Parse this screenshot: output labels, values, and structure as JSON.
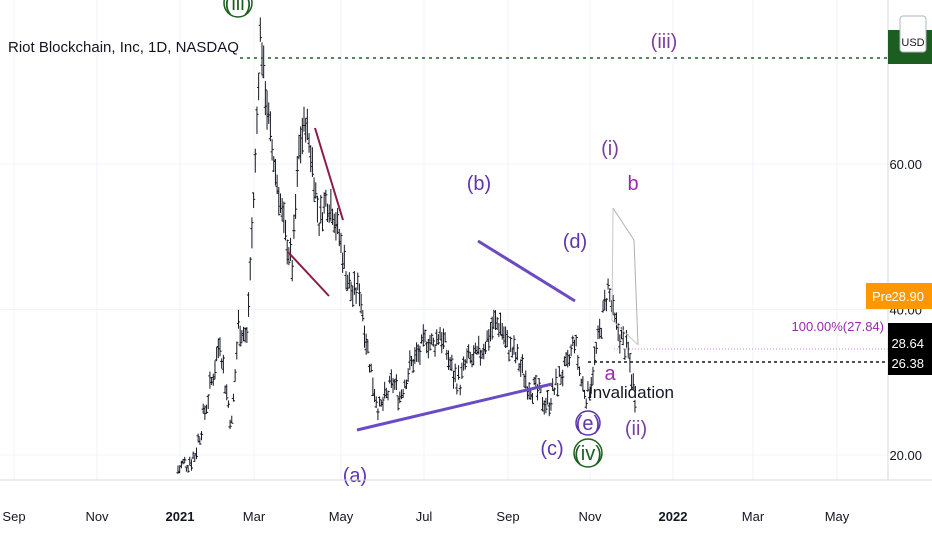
{
  "header": {
    "title": "Riot Blockchain, Inc, 1D, NASDAQ",
    "currency": "USD"
  },
  "chart_data": {
    "type": "ohlc",
    "title": "Riot Blockchain, Inc, 1D, NASDAQ",
    "xlabel": "",
    "ylabel": "",
    "ylim": [
      16,
      82
    ],
    "x_tick_labels": [
      "Sep",
      "Nov",
      "2021",
      "Mar",
      "May",
      "Jul",
      "Sep",
      "Nov",
      "2022",
      "Mar",
      "May"
    ],
    "y_tick_labels": [
      "20.00",
      "40.00",
      "60.00"
    ],
    "y_ticks": [
      20,
      40,
      60
    ],
    "grid": true,
    "price_markers": {
      "pre": {
        "label": "Pre",
        "value": "28.90",
        "color": "#ff9800"
      },
      "last": {
        "value": "28.64",
        "color": "#000000"
      },
      "invalidation": {
        "value": "26.38",
        "color": "#000000"
      },
      "wave_iii_target": {
        "value": "",
        "color": "#1b5e20"
      }
    },
    "fib_label": "100.00%(27.84)",
    "annotations": {
      "invalidation_text": "Invalidation",
      "waves": [
        {
          "text": "(iii)",
          "color": "#1b5e20",
          "circled": true
        },
        {
          "text": "(iii)",
          "color": "#7b3fa0"
        },
        {
          "text": "(b)",
          "color": "#5e35b1"
        },
        {
          "text": "(d)",
          "color": "#5e35b1"
        },
        {
          "text": "(i)",
          "color": "#7b3fa0"
        },
        {
          "text": "b",
          "color": "#9c27b0"
        },
        {
          "text": "a",
          "color": "#9c27b0"
        },
        {
          "text": "(ii)",
          "color": "#7b3fa0"
        },
        {
          "text": "(c)",
          "color": "#5e35b1"
        },
        {
          "text": "(e)",
          "color": "#5e35b1",
          "circled": true
        },
        {
          "text": "(iv)",
          "color": "#1b5e20",
          "circled": true
        },
        {
          "text": "(a)",
          "color": "#5e35b1"
        }
      ]
    },
    "colors": {
      "bars": "#131722",
      "triangle": "#6a4bc4",
      "wedge": "#8b1c4a",
      "fib": "#c58ae0",
      "target": "#1b5e20"
    },
    "bars_key_points": [
      [
        0,
        18
      ],
      [
        10,
        20
      ],
      [
        20,
        30
      ],
      [
        25,
        36
      ],
      [
        28,
        30
      ],
      [
        32,
        24
      ],
      [
        36,
        38
      ],
      [
        41,
        36
      ],
      [
        46,
        60
      ],
      [
        49,
        78
      ],
      [
        52,
        70
      ],
      [
        56,
        62
      ],
      [
        60,
        56
      ],
      [
        64,
        50
      ],
      [
        68,
        46
      ],
      [
        72,
        62
      ],
      [
        76,
        66
      ],
      [
        80,
        60
      ],
      [
        84,
        52
      ],
      [
        88,
        55
      ],
      [
        92,
        54
      ],
      [
        96,
        50
      ],
      [
        101,
        44
      ],
      [
        104,
        42
      ],
      [
        108,
        43
      ],
      [
        112,
        36
      ],
      [
        116,
        30
      ],
      [
        120,
        26
      ],
      [
        124,
        28
      ],
      [
        128,
        30
      ],
      [
        132,
        28
      ],
      [
        136,
        31
      ],
      [
        140,
        33
      ],
      [
        144,
        34
      ],
      [
        148,
        36
      ],
      [
        152,
        35
      ],
      [
        156,
        37
      ],
      [
        160,
        34
      ],
      [
        164,
        31
      ],
      [
        168,
        30
      ],
      [
        172,
        33
      ],
      [
        176,
        33
      ],
      [
        180,
        34
      ],
      [
        184,
        36
      ],
      [
        188,
        38
      ],
      [
        192,
        38
      ],
      [
        196,
        35
      ],
      [
        200,
        34
      ],
      [
        204,
        32
      ],
      [
        208,
        30
      ],
      [
        212,
        29
      ],
      [
        216,
        28
      ],
      [
        220,
        27
      ],
      [
        224,
        29
      ],
      [
        228,
        31
      ],
      [
        232,
        32
      ],
      [
        236,
        36
      ],
      [
        240,
        30
      ],
      [
        244,
        28
      ],
      [
        248,
        33
      ],
      [
        252,
        38
      ],
      [
        256,
        43
      ],
      [
        260,
        38
      ],
      [
        264,
        36
      ],
      [
        268,
        34
      ],
      [
        272,
        28
      ]
    ]
  }
}
